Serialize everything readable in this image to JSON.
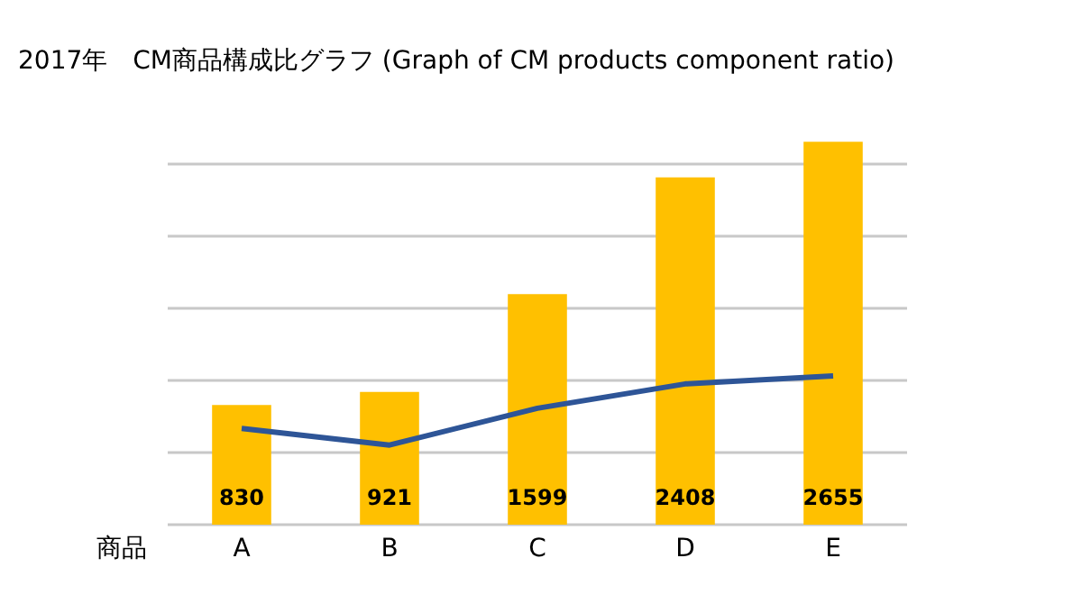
{
  "chart_data": {
    "type": "bar",
    "title": "2017年　CM商品構成比グラフ (Graph of CM products component ratio)",
    "xlabel": "商品",
    "categories": [
      "A",
      "B",
      "C",
      "D",
      "E"
    ],
    "series": [
      {
        "color": "#ffc000",
        "values": [
          830,
          921,
          1599,
          2408,
          2655
        ],
        "value_labels": [
          "830",
          "921",
          "1599",
          "2408",
          "2655"
        ]
      },
      {
        "type": "line",
        "color": "#2e5597",
        "values": [
          667,
          552,
          807,
          976,
          1032
        ]
      }
    ],
    "ylim": [
      0,
      2700
    ],
    "yticks": [
      {
        "value": 0,
        "label": null
      },
      {
        "value": 500,
        "label": null
      },
      {
        "value": 1000,
        "label": null
      },
      {
        "value": 1500,
        "label": null
      },
      {
        "value": 2000,
        "label": null
      },
      {
        "value": 2500,
        "label": null
      }
    ],
    "tick_labels": "x",
    "grid": "y"
  }
}
